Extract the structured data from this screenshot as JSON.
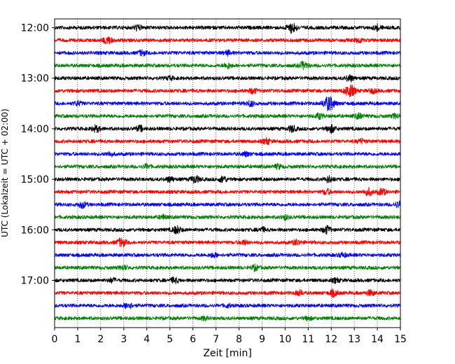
{
  "chart_data": {
    "type": "line",
    "title": "",
    "xlabel": "Zeit  [min]",
    "ylabel": "UTC (Lokalzeit = UTC + 02:00)",
    "xlim": [
      0,
      15
    ],
    "x_ticks": [
      0,
      1,
      2,
      3,
      4,
      5,
      6,
      7,
      8,
      9,
      10,
      11,
      12,
      13,
      14,
      15
    ],
    "y_tick_labels": [
      "12:00",
      "13:00",
      "14:00",
      "15:00",
      "16:00",
      "17:00"
    ],
    "grid": "vertical dotted lines at each minute",
    "trace_interval_minutes": 15,
    "trace_colors_cycle": [
      "#000000",
      "#ff0000",
      "#0000ff",
      "#008000"
    ],
    "series": [
      {
        "start": "12:00",
        "color": "#000000",
        "events": [
          {
            "t": 10.3,
            "amp": 1.0
          },
          {
            "t": 3.6,
            "amp": 0.5
          },
          {
            "t": 14.0,
            "amp": 0.5
          }
        ]
      },
      {
        "start": "12:15",
        "color": "#ff0000",
        "events": [
          {
            "t": 2.3,
            "amp": 0.7
          },
          {
            "t": 13.2,
            "amp": 0.4
          }
        ]
      },
      {
        "start": "12:30",
        "color": "#0000ff",
        "events": [
          {
            "t": 3.8,
            "amp": 0.5
          },
          {
            "t": 7.5,
            "amp": 0.4
          }
        ]
      },
      {
        "start": "12:45",
        "color": "#008000",
        "events": [
          {
            "t": 7.5,
            "amp": 0.5
          },
          {
            "t": 10.8,
            "amp": 0.7
          }
        ]
      },
      {
        "start": "13:00",
        "color": "#000000",
        "events": [
          {
            "t": 12.8,
            "amp": 0.6
          },
          {
            "t": 5.0,
            "amp": 0.3
          }
        ]
      },
      {
        "start": "13:15",
        "color": "#ff0000",
        "events": [
          {
            "t": 8.6,
            "amp": 0.5
          },
          {
            "t": 12.8,
            "amp": 1.2
          },
          {
            "t": 13.8,
            "amp": 0.4
          }
        ]
      },
      {
        "start": "13:30",
        "color": "#0000ff",
        "events": [
          {
            "t": 11.9,
            "amp": 1.4
          },
          {
            "t": 8.5,
            "amp": 0.5
          },
          {
            "t": 1.0,
            "amp": 0.4
          }
        ]
      },
      {
        "start": "13:45",
        "color": "#008000",
        "events": [
          {
            "t": 11.5,
            "amp": 0.5
          },
          {
            "t": 13.2,
            "amp": 0.5
          },
          {
            "t": 14.8,
            "amp": 0.4
          }
        ]
      },
      {
        "start": "14:00",
        "color": "#000000",
        "events": [
          {
            "t": 1.8,
            "amp": 0.6
          },
          {
            "t": 12.0,
            "amp": 0.7
          },
          {
            "t": 10.3,
            "amp": 0.6
          },
          {
            "t": 3.7,
            "amp": 0.5
          }
        ]
      },
      {
        "start": "14:15",
        "color": "#ff0000",
        "events": [
          {
            "t": 9.2,
            "amp": 0.5
          },
          {
            "t": 13.3,
            "amp": 0.4
          }
        ]
      },
      {
        "start": "14:30",
        "color": "#0000ff",
        "events": [
          {
            "t": 2.4,
            "amp": 0.4
          },
          {
            "t": 8.3,
            "amp": 0.4
          }
        ]
      },
      {
        "start": "14:45",
        "color": "#008000",
        "events": [
          {
            "t": 4.0,
            "amp": 0.4
          },
          {
            "t": 9.7,
            "amp": 0.4
          }
        ]
      },
      {
        "start": "15:00",
        "color": "#000000",
        "events": [
          {
            "t": 6.1,
            "amp": 0.7
          },
          {
            "t": 7.3,
            "amp": 0.6
          },
          {
            "t": 11.9,
            "amp": 0.6
          },
          {
            "t": 5.0,
            "amp": 0.5
          }
        ]
      },
      {
        "start": "15:15",
        "color": "#ff0000",
        "events": [
          {
            "t": 13.6,
            "amp": 0.7
          },
          {
            "t": 14.2,
            "amp": 0.6
          },
          {
            "t": 11.8,
            "amp": 0.5
          }
        ]
      },
      {
        "start": "15:30",
        "color": "#0000ff",
        "events": [
          {
            "t": 1.2,
            "amp": 0.6
          },
          {
            "t": 14.9,
            "amp": 0.5
          }
        ]
      },
      {
        "start": "15:45",
        "color": "#008000",
        "events": [
          {
            "t": 4.7,
            "amp": 0.4
          },
          {
            "t": 10.0,
            "amp": 0.4
          }
        ]
      },
      {
        "start": "16:00",
        "color": "#000000",
        "events": [
          {
            "t": 5.3,
            "amp": 0.7
          },
          {
            "t": 11.8,
            "amp": 0.7
          },
          {
            "t": 9.0,
            "amp": 0.4
          }
        ]
      },
      {
        "start": "16:15",
        "color": "#ff0000",
        "events": [
          {
            "t": 2.9,
            "amp": 0.8
          },
          {
            "t": 10.5,
            "amp": 0.5
          },
          {
            "t": 8.2,
            "amp": 0.4
          }
        ]
      },
      {
        "start": "16:30",
        "color": "#0000ff",
        "events": [
          {
            "t": 6.9,
            "amp": 0.4
          },
          {
            "t": 12.5,
            "amp": 0.4
          }
        ]
      },
      {
        "start": "16:45",
        "color": "#008000",
        "events": [
          {
            "t": 8.7,
            "amp": 0.5
          },
          {
            "t": 3.0,
            "amp": 0.4
          }
        ]
      },
      {
        "start": "17:00",
        "color": "#000000",
        "events": [
          {
            "t": 5.2,
            "amp": 0.5
          },
          {
            "t": 2.5,
            "amp": 0.4
          },
          {
            "t": 12.2,
            "amp": 0.4
          }
        ]
      },
      {
        "start": "17:15",
        "color": "#ff0000",
        "events": [
          {
            "t": 10.6,
            "amp": 0.5
          },
          {
            "t": 12.1,
            "amp": 0.6
          },
          {
            "t": 13.7,
            "amp": 0.5
          }
        ]
      },
      {
        "start": "17:30",
        "color": "#0000ff",
        "events": [
          {
            "t": 3.2,
            "amp": 0.6
          },
          {
            "t": 7.5,
            "amp": 0.3
          }
        ]
      },
      {
        "start": "17:45",
        "color": "#008000",
        "events": [
          {
            "t": 6.5,
            "amp": 0.3
          },
          {
            "t": 11.0,
            "amp": 0.3
          }
        ]
      }
    ]
  }
}
